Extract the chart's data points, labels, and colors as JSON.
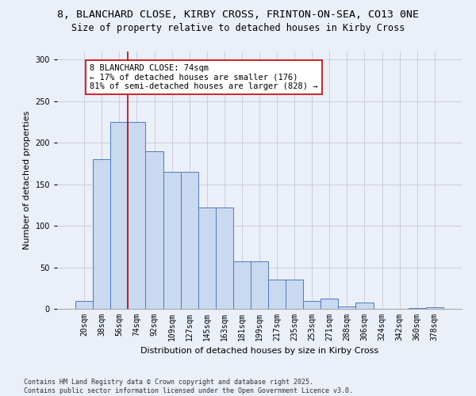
{
  "title_line1": "8, BLANCHARD CLOSE, KIRBY CROSS, FRINTON-ON-SEA, CO13 0NE",
  "title_line2": "Size of property relative to detached houses in Kirby Cross",
  "xlabel": "Distribution of detached houses by size in Kirby Cross",
  "ylabel": "Number of detached properties",
  "categories": [
    "20sqm",
    "38sqm",
    "56sqm",
    "74sqm",
    "92sqm",
    "109sqm",
    "127sqm",
    "145sqm",
    "163sqm",
    "181sqm",
    "199sqm",
    "217sqm",
    "235sqm",
    "253sqm",
    "271sqm",
    "288sqm",
    "306sqm",
    "324sqm",
    "342sqm",
    "360sqm",
    "378sqm"
  ],
  "values": [
    10,
    180,
    225,
    225,
    190,
    165,
    165,
    122,
    122,
    57,
    57,
    35,
    35,
    10,
    12,
    3,
    8,
    0,
    0,
    1,
    2
  ],
  "bar_color": "#c9d9f0",
  "bar_edge_color": "#4f79c0",
  "grid_color": "#c8c8d8",
  "background_color": "#eaeff8",
  "vline_color": "#cc0000",
  "annotation_text": "8 BLANCHARD CLOSE: 74sqm\n← 17% of detached houses are smaller (176)\n81% of semi-detached houses are larger (828) →",
  "annotation_box_color": "#ffffff",
  "annotation_border_color": "#cc0000",
  "ylim": [
    0,
    310
  ],
  "yticks": [
    0,
    50,
    100,
    150,
    200,
    250,
    300
  ],
  "footnote": "Contains HM Land Registry data © Crown copyright and database right 2025.\nContains public sector information licensed under the Open Government Licence v3.0.",
  "title_fontsize": 9.5,
  "subtitle_fontsize": 8.5,
  "axis_label_fontsize": 8,
  "tick_fontsize": 7,
  "annotation_fontsize": 7.5,
  "footnote_fontsize": 6
}
